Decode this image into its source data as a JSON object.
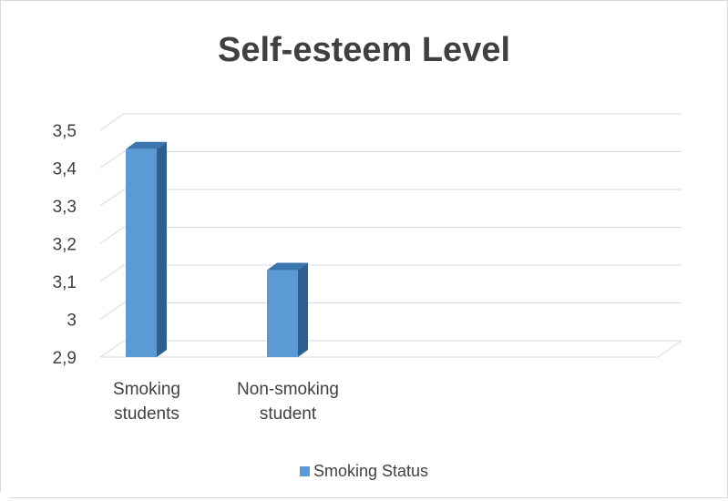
{
  "chart_data": {
    "type": "bar",
    "title": "Self-esteem Level",
    "categories": [
      [
        "Smoking",
        "students"
      ],
      [
        "Non-smoking",
        "student"
      ]
    ],
    "series": [
      {
        "name": "Smoking Status",
        "values": [
          3.45,
          3.13
        ]
      }
    ],
    "ylim": [
      2.9,
      3.5
    ],
    "yticks": [
      "2,9",
      "3",
      "3,1",
      "3,2",
      "3,3",
      "3,4",
      "3,5"
    ],
    "grid": true,
    "legend": "bottom",
    "colors": {
      "bar_front": "#5b9bd5",
      "bar_side": "#2e5f8e",
      "bar_top": "#3a75ad",
      "grid": "#d9d9d9"
    }
  }
}
